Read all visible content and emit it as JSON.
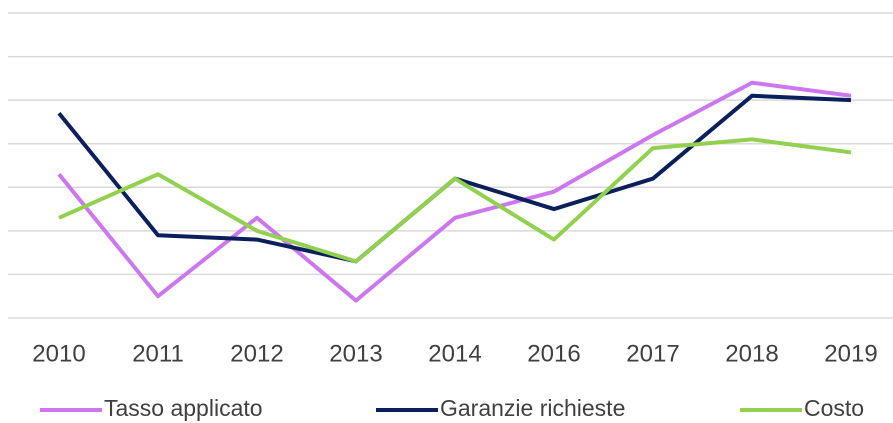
{
  "chart_data": {
    "type": "line",
    "categories": [
      "2010",
      "2011",
      "2012",
      "2013",
      "2014",
      "2016",
      "2017",
      "2018",
      "2019"
    ],
    "series": [
      {
        "name": "Tasso applicato",
        "color": "#cc77ee",
        "values": [
          3.3,
          0.5,
          2.3,
          0.4,
          2.3,
          2.9,
          4.2,
          5.4,
          5.1
        ]
      },
      {
        "name": "Garanzie richieste",
        "color": "#0a1f5c",
        "values": [
          4.7,
          1.9,
          1.8,
          1.3,
          3.2,
          2.5,
          3.2,
          5.1,
          5.0
        ]
      },
      {
        "name": "Costo",
        "color": "#92d050",
        "values": [
          2.3,
          3.3,
          2.0,
          1.3,
          3.2,
          1.8,
          3.9,
          4.1,
          3.8
        ]
      }
    ],
    "ylim": [
      0,
      7
    ],
    "yticks": [
      0,
      1,
      2,
      3,
      4,
      5,
      6,
      7
    ],
    "grid": true,
    "legend": "bottom"
  }
}
